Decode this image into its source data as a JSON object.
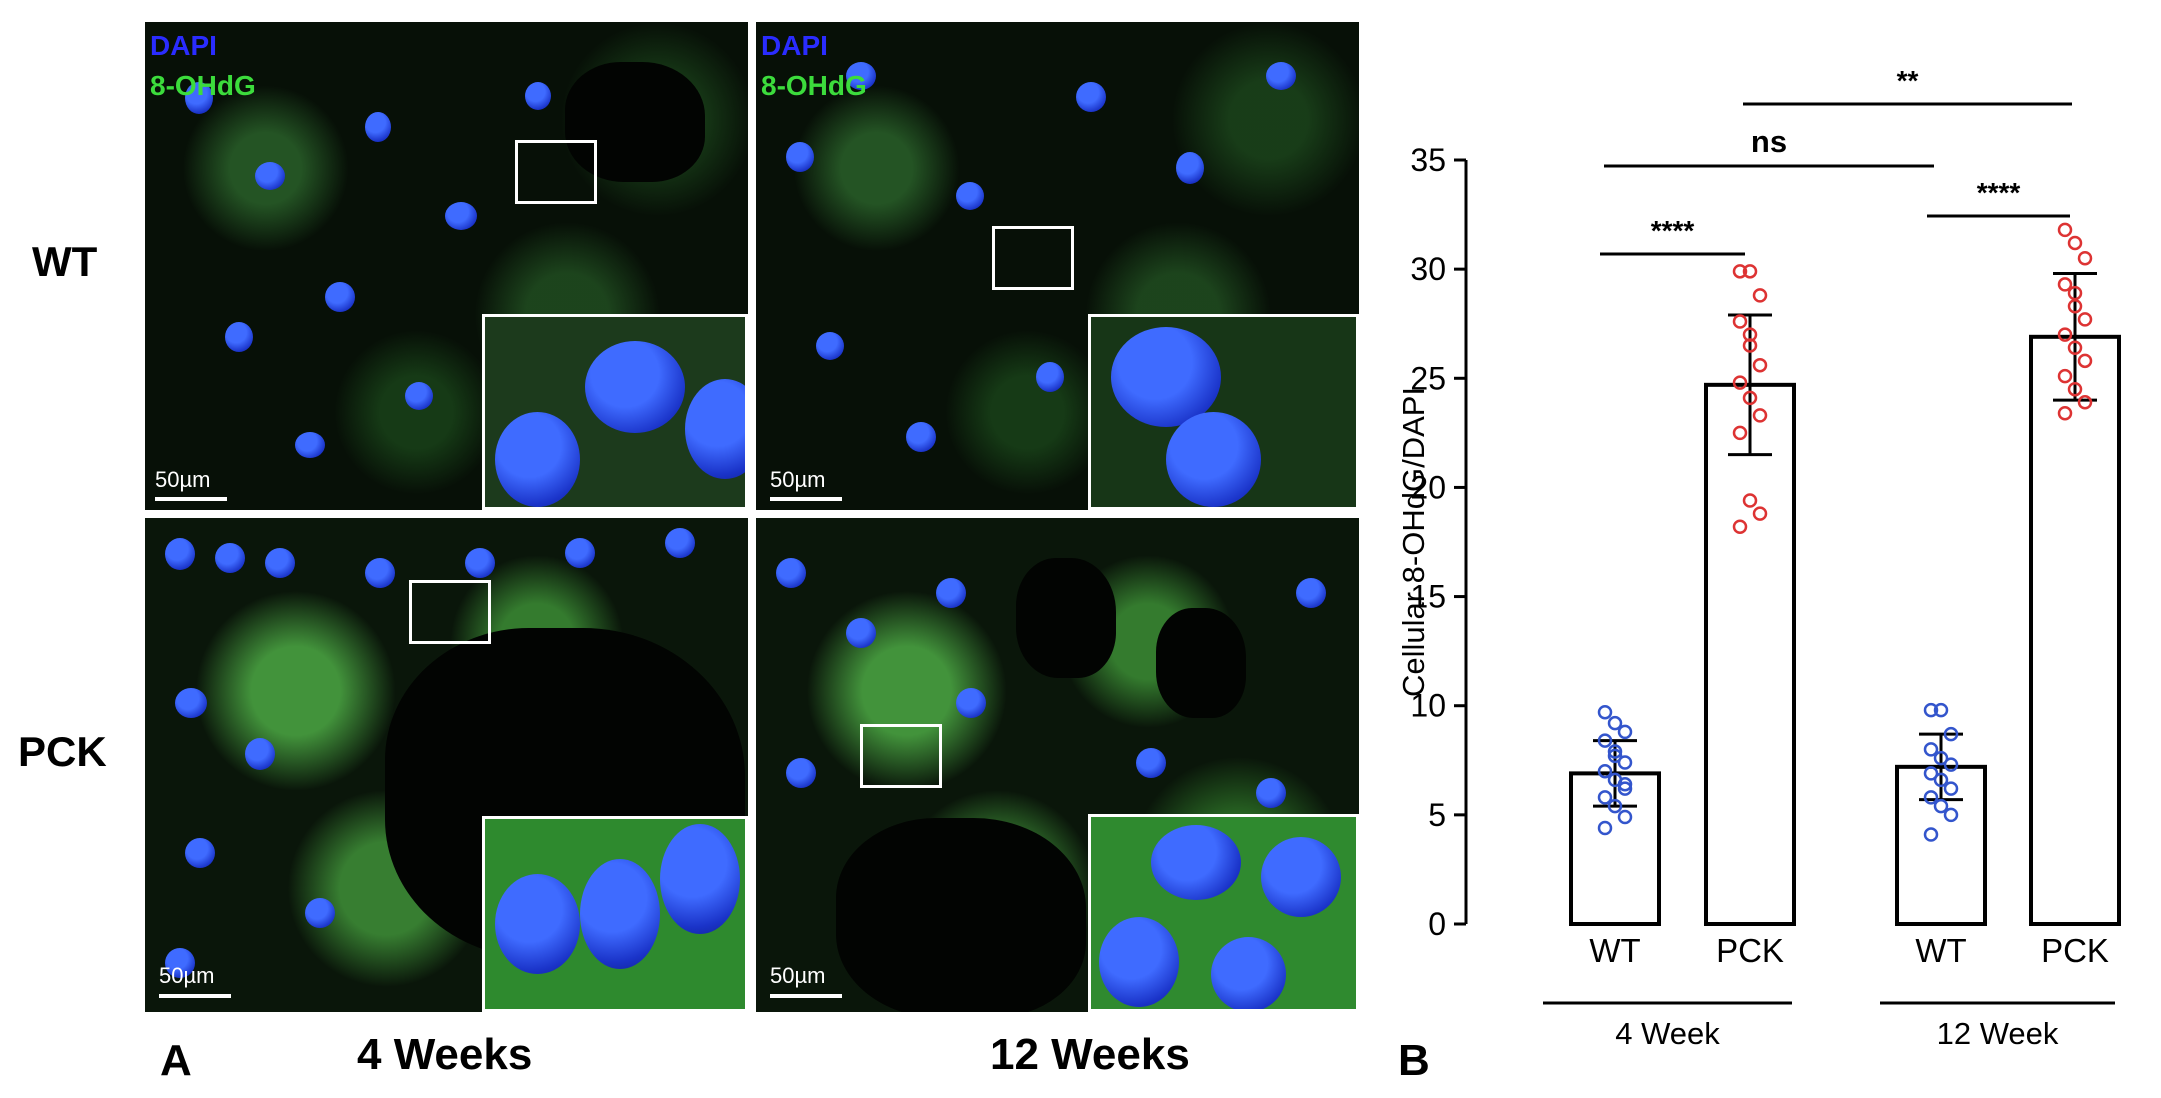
{
  "panel_a": {
    "letter": "A",
    "rows": [
      "WT",
      "PCK"
    ],
    "columns": [
      "4 Weeks",
      "12 Weeks"
    ],
    "channels": {
      "dapi": "DAPI",
      "ohdg": "8-OHdG"
    },
    "scale_bar": "50µm",
    "colors": {
      "dapi": "#2a2cff",
      "ohdg": "#3cdc3c"
    }
  },
  "panel_b": {
    "letter": "B"
  },
  "chart_data": {
    "type": "bar",
    "ylabel": "Cellular 8-OHdG/DAPI",
    "ylim": [
      0,
      35
    ],
    "yticks": [
      0,
      5,
      10,
      15,
      20,
      25,
      30,
      35
    ],
    "categories": [
      "WT",
      "PCK",
      "WT",
      "PCK"
    ],
    "groups": [
      {
        "label": "4 Week",
        "members": [
          0,
          1
        ]
      },
      {
        "label": "12 Week",
        "members": [
          2,
          3
        ]
      }
    ],
    "series": [
      {
        "values": [
          6.9,
          24.7,
          7.2,
          26.9
        ],
        "sd": [
          1.5,
          3.2,
          1.5,
          2.9
        ]
      }
    ],
    "points": [
      [
        9.7,
        9.2,
        8.8,
        8.4,
        7.9,
        7.4,
        7.0,
        6.6,
        6.2,
        5.8,
        5.4,
        4.9,
        4.4,
        7.7,
        6.4
      ],
      [
        29.9,
        29.9,
        28.8,
        27.6,
        26.5,
        25.6,
        24.8,
        24.1,
        23.3,
        22.5,
        19.4,
        18.8,
        18.2,
        27.0
      ],
      [
        9.8,
        9.8,
        8.7,
        8.0,
        7.6,
        7.3,
        6.9,
        6.6,
        6.2,
        5.8,
        5.4,
        5.0,
        4.1
      ],
      [
        31.8,
        31.2,
        30.5,
        29.3,
        28.3,
        27.7,
        27.0,
        26.4,
        25.8,
        25.1,
        24.5,
        23.9,
        23.4,
        28.9
      ]
    ],
    "point_colors": [
      "#3355cc",
      "#dd3333",
      "#3355cc",
      "#dd3333"
    ],
    "significance": [
      {
        "label": "****",
        "from": 0,
        "to": 1
      },
      {
        "label": "****",
        "from": 2,
        "to": 3
      },
      {
        "label": "ns",
        "from": 0,
        "to": 2
      },
      {
        "label": "**",
        "from": 1,
        "to": 3
      }
    ]
  }
}
